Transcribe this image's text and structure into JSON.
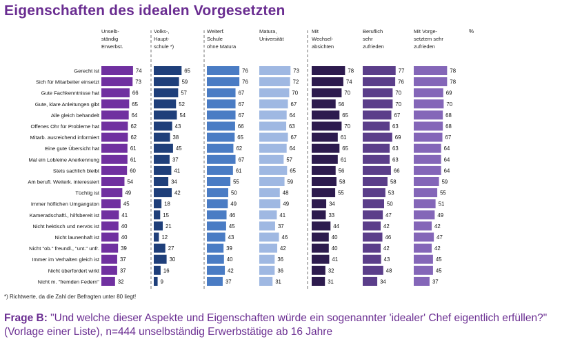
{
  "title": "Eigenschaften des idealen Vorgesetzten",
  "footnote": "*) Richtwerte, da die Zahl der Befragten unter 80 liegt!",
  "question": {
    "label": "Frage B:",
    "text": " \"Und welche dieser Aspekte und Eigenschaften würde ein sogenannter 'idealer' Chef eigentlich erfüllen?\" (Vorlage einer Liste), n=444 unselbständig Erwerbstätige ab 16 Jahre"
  },
  "percent_label": "%",
  "chart_data": {
    "type": "bar",
    "orientation": "horizontal",
    "categories": [
      "Gerecht ist",
      "Sich für Mitarbeiter einsetzt",
      "Gute Fachkenntnisse hat",
      "Gute, klare Anleitungen gibt",
      "Alle gleich behandelt",
      "Offenes Ohr für Probleme hat",
      "Mitarb. ausreichend informiert",
      "Eine gute Übersicht hat",
      "Mal ein Lob/eine Anerkennung",
      "Stets sachlich bleibt",
      "Am berufl. Weiterk. interessiert",
      "Tüchtig ist",
      "Immer höflichen Umgangston",
      "Kameradschaftl., hilfsbereit ist",
      "Nicht hektisch und nervös ist",
      "Nicht launenhaft ist",
      "Nicht \"ob.\" freundl., \"unt.\" unfr.",
      "Immer im Verhalten gleich ist",
      "Nicht überfordert wirkt",
      "Nicht m. \"fremden Federn\""
    ],
    "series": [
      {
        "name": "Unselb-\nständig\nErwerbst.",
        "color": "#7030a0",
        "values": [
          74,
          73,
          66,
          65,
          64,
          62,
          62,
          61,
          61,
          60,
          54,
          49,
          45,
          41,
          40,
          40,
          39,
          37,
          37,
          32
        ]
      },
      {
        "name": "Volks-,\nHaupt-\nschule *)",
        "color": "#1f3f7a",
        "values": [
          65,
          59,
          57,
          52,
          54,
          43,
          38,
          45,
          37,
          41,
          34,
          42,
          18,
          15,
          21,
          12,
          27,
          30,
          16,
          9
        ]
      },
      {
        "name": "Weiterf.\nSchule\nohne Matura",
        "color": "#4a7cc4",
        "values": [
          76,
          76,
          67,
          67,
          67,
          66,
          65,
          62,
          67,
          61,
          55,
          50,
          49,
          46,
          45,
          43,
          39,
          40,
          42,
          37
        ]
      },
      {
        "name": "Matura,\nUniversität",
        "color": "#9fb8e2",
        "values": [
          73,
          72,
          70,
          67,
          64,
          63,
          67,
          64,
          57,
          65,
          59,
          48,
          49,
          41,
          37,
          46,
          42,
          36,
          36,
          31
        ]
      },
      {
        "name": "Mit\nWechsel-\nabsichten",
        "color": "#2d1b4e",
        "values": [
          78,
          74,
          70,
          56,
          65,
          70,
          61,
          65,
          61,
          56,
          58,
          55,
          34,
          33,
          44,
          40,
          40,
          41,
          32,
          31
        ]
      },
      {
        "name": "Beruflich\nsehr\nzufrieden",
        "color": "#5b3e8a",
        "values": [
          77,
          76,
          70,
          70,
          67,
          63,
          69,
          63,
          63,
          66,
          58,
          53,
          50,
          47,
          42,
          46,
          42,
          43,
          48,
          34
        ]
      },
      {
        "name": "Mit Vorge-\nsetztem sehr\nzufrieden",
        "color": "#8466b8",
        "values": [
          78,
          78,
          69,
          70,
          68,
          68,
          67,
          64,
          64,
          64,
          59,
          55,
          51,
          49,
          42,
          47,
          42,
          45,
          45,
          37
        ]
      }
    ],
    "value_unit": "%",
    "xlim": [
      0,
      100
    ],
    "grid": false,
    "legend": "column headers above each panel"
  }
}
